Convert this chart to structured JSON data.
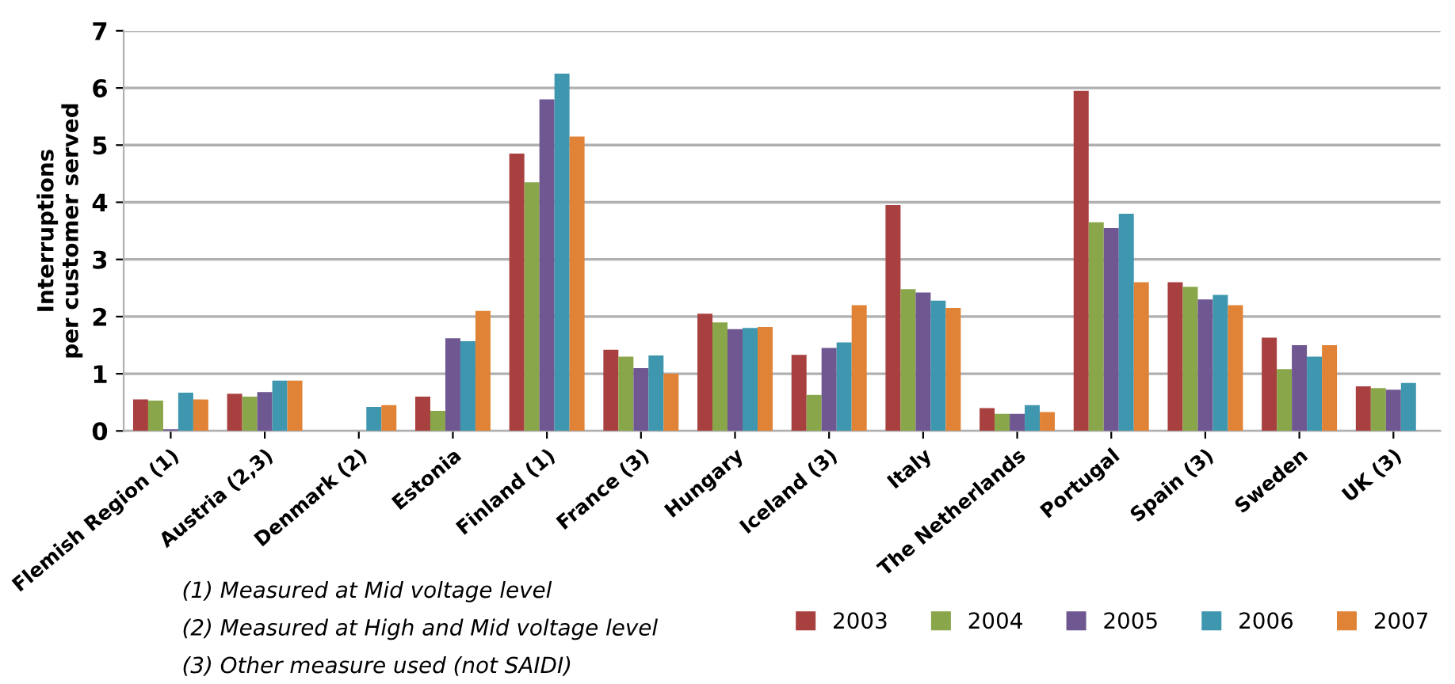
{
  "chart_data": {
    "type": "bar",
    "ylabel": "Interruptions\nper customer served",
    "categories": [
      "Flemish Region (1)",
      "Austria (2,3)",
      "Denmark (2)",
      "Estonia",
      "Finland (1)",
      "France (3)",
      "Hungary",
      "Iceland (3)",
      "Italy",
      "The Netherlands",
      "Portugal",
      "Spain (3)",
      "Sweden",
      "UK (3)"
    ],
    "series": [
      {
        "name": "2003",
        "color": "#a8403f",
        "values": [
          0.55,
          0.65,
          null,
          0.6,
          4.85,
          1.42,
          2.05,
          1.33,
          3.95,
          0.4,
          5.95,
          2.6,
          1.63,
          0.78
        ]
      },
      {
        "name": "2004",
        "color": "#8aa64a",
        "values": [
          0.53,
          0.6,
          null,
          0.35,
          4.35,
          1.3,
          1.9,
          0.63,
          2.48,
          0.3,
          3.65,
          2.52,
          1.08,
          0.75
        ]
      },
      {
        "name": "2005",
        "color": "#6f5791",
        "values": [
          0.03,
          0.68,
          null,
          1.62,
          5.8,
          1.1,
          1.78,
          1.45,
          2.42,
          0.3,
          3.55,
          2.3,
          1.5,
          0.72
        ]
      },
      {
        "name": "2006",
        "color": "#3e97ae",
        "values": [
          0.67,
          0.88,
          0.42,
          1.57,
          6.25,
          1.32,
          1.8,
          1.55,
          2.28,
          0.45,
          3.8,
          2.38,
          1.3,
          0.84
        ]
      },
      {
        "name": "2007",
        "color": "#e08336",
        "values": [
          0.55,
          0.88,
          0.45,
          2.1,
          5.15,
          1.0,
          1.82,
          2.2,
          2.15,
          0.33,
          2.6,
          2.2,
          1.5,
          null
        ]
      }
    ],
    "ylim": [
      0,
      7
    ],
    "yticks": [
      0,
      1,
      2,
      3,
      4,
      5,
      6,
      7
    ],
    "grid": "y",
    "legend": "bottom right",
    "annotations": [
      "(1) Measured at Mid voltage level",
      "(2) Measured at High and Mid voltage level",
      "(3) Other measure used (not SAIDI)"
    ]
  }
}
